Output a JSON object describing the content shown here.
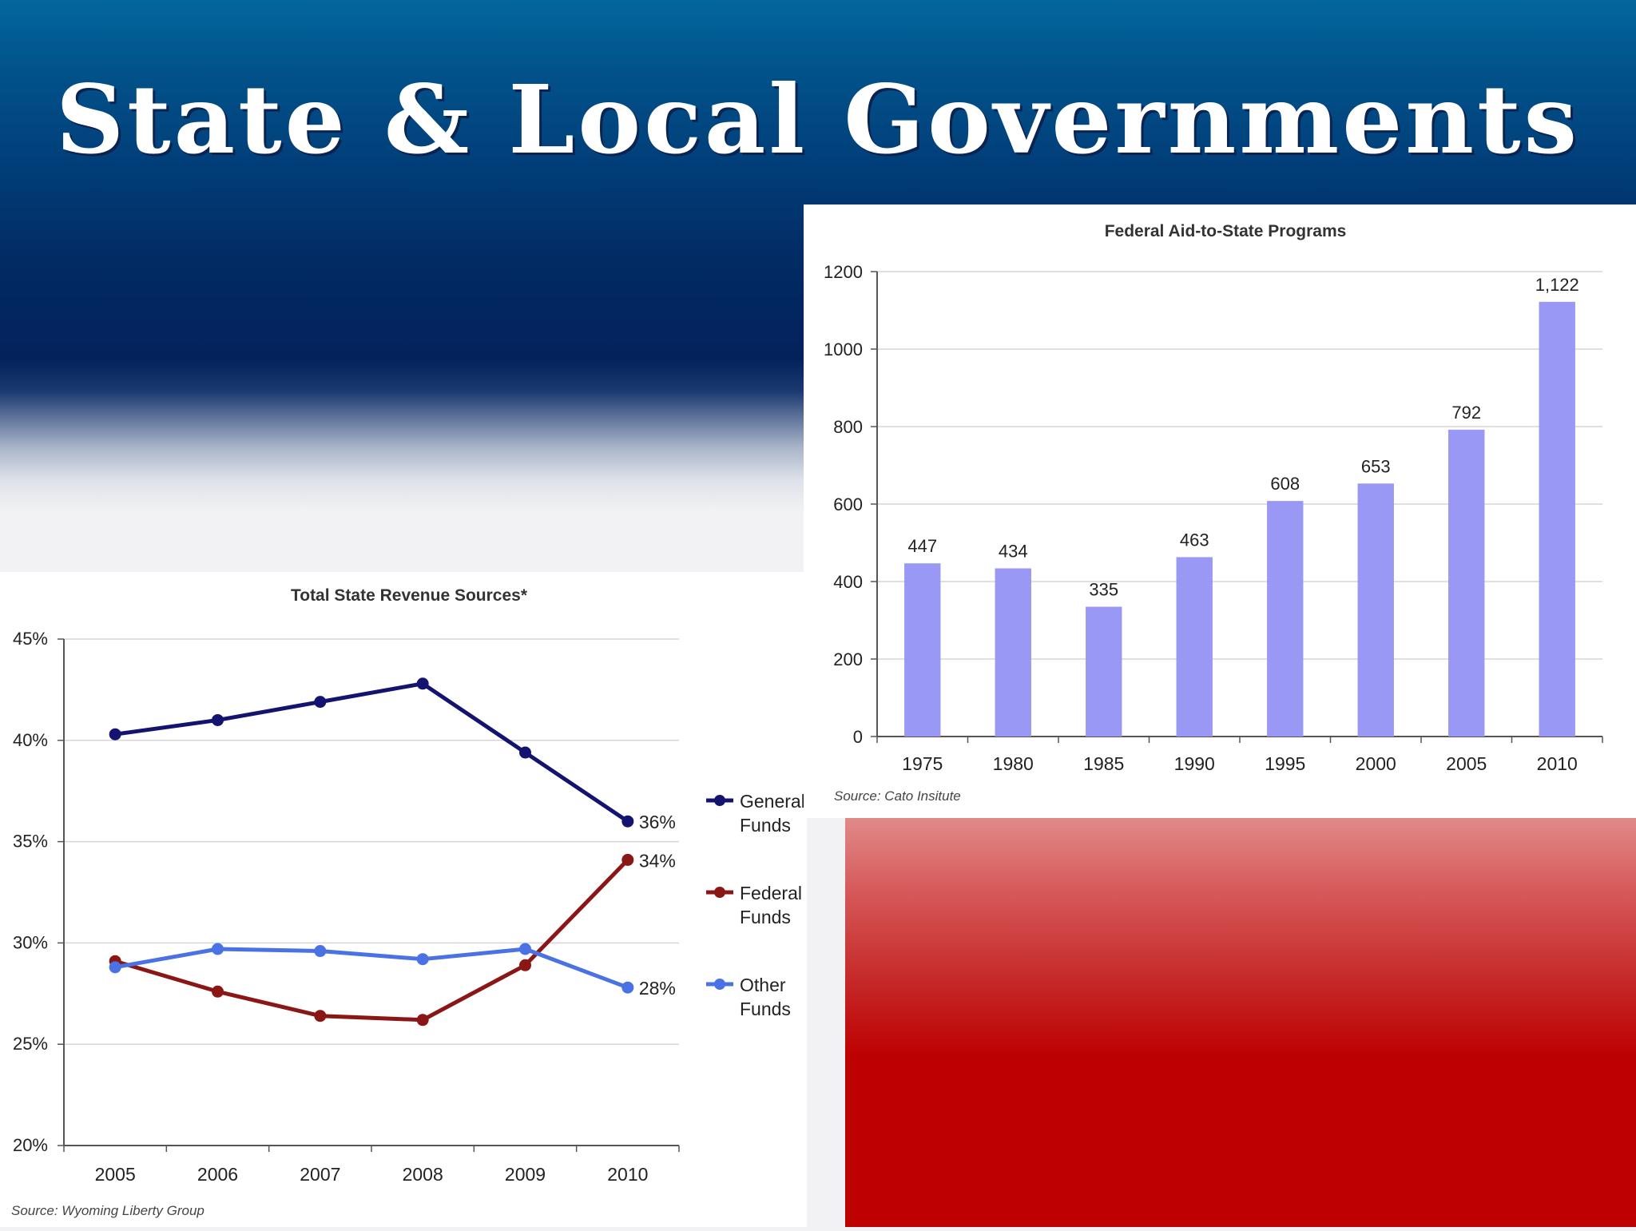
{
  "slide": {
    "title": "State & Local Governments",
    "colors": {
      "top_blue": "#03669e",
      "navy": "#03225c",
      "red": "#bd0000",
      "white": "#ffffff"
    }
  },
  "chart_data": [
    {
      "type": "line",
      "title": "Total State Revenue Sources*",
      "source": "Source: Wyoming Liberty Group",
      "x": [
        "2005",
        "2006",
        "2007",
        "2008",
        "2009",
        "2010"
      ],
      "y_tick_labels": [
        "45%",
        "40%",
        "35%",
        "30%",
        "25%",
        "20%"
      ],
      "ylim": [
        20,
        45
      ],
      "y_unit": "%",
      "grid": true,
      "legend_position": "right",
      "series": [
        {
          "name": "General Funds",
          "legend_lines": [
            "General",
            "Funds"
          ],
          "color": "#141470",
          "values": [
            40.3,
            41.0,
            41.9,
            42.8,
            39.4,
            36.0
          ],
          "end_label": "36%"
        },
        {
          "name": "Federal Funds",
          "legend_lines": [
            "Federal",
            "Funds"
          ],
          "color": "#8b1616",
          "values": [
            29.1,
            27.6,
            26.4,
            26.2,
            28.9,
            34.1
          ],
          "end_label": "34%"
        },
        {
          "name": "Other Funds",
          "legend_lines": [
            "Other",
            "Funds"
          ],
          "color": "#4a72e4",
          "values": [
            28.8,
            29.7,
            29.6,
            29.2,
            29.7,
            27.8
          ],
          "end_label": "28%"
        }
      ]
    },
    {
      "type": "bar",
      "title": "Federal Aid-to-State Programs",
      "source": "Source: Cato Insitute",
      "categories": [
        "1975",
        "1980",
        "1985",
        "1990",
        "1995",
        "2000",
        "2005",
        "2010"
      ],
      "values": [
        447,
        434,
        335,
        463,
        608,
        653,
        792,
        1122
      ],
      "data_labels": [
        "447",
        "434",
        "335",
        "463",
        "608",
        "653",
        "792",
        "1,122"
      ],
      "y_ticks": [
        0,
        200,
        400,
        600,
        800,
        1000,
        1200
      ],
      "y_tick_labels": [
        "0",
        "200",
        "400",
        "600",
        "800",
        "1000",
        "1200"
      ],
      "ylim": [
        0,
        1200
      ],
      "grid": true,
      "color": "#9999f5"
    }
  ]
}
